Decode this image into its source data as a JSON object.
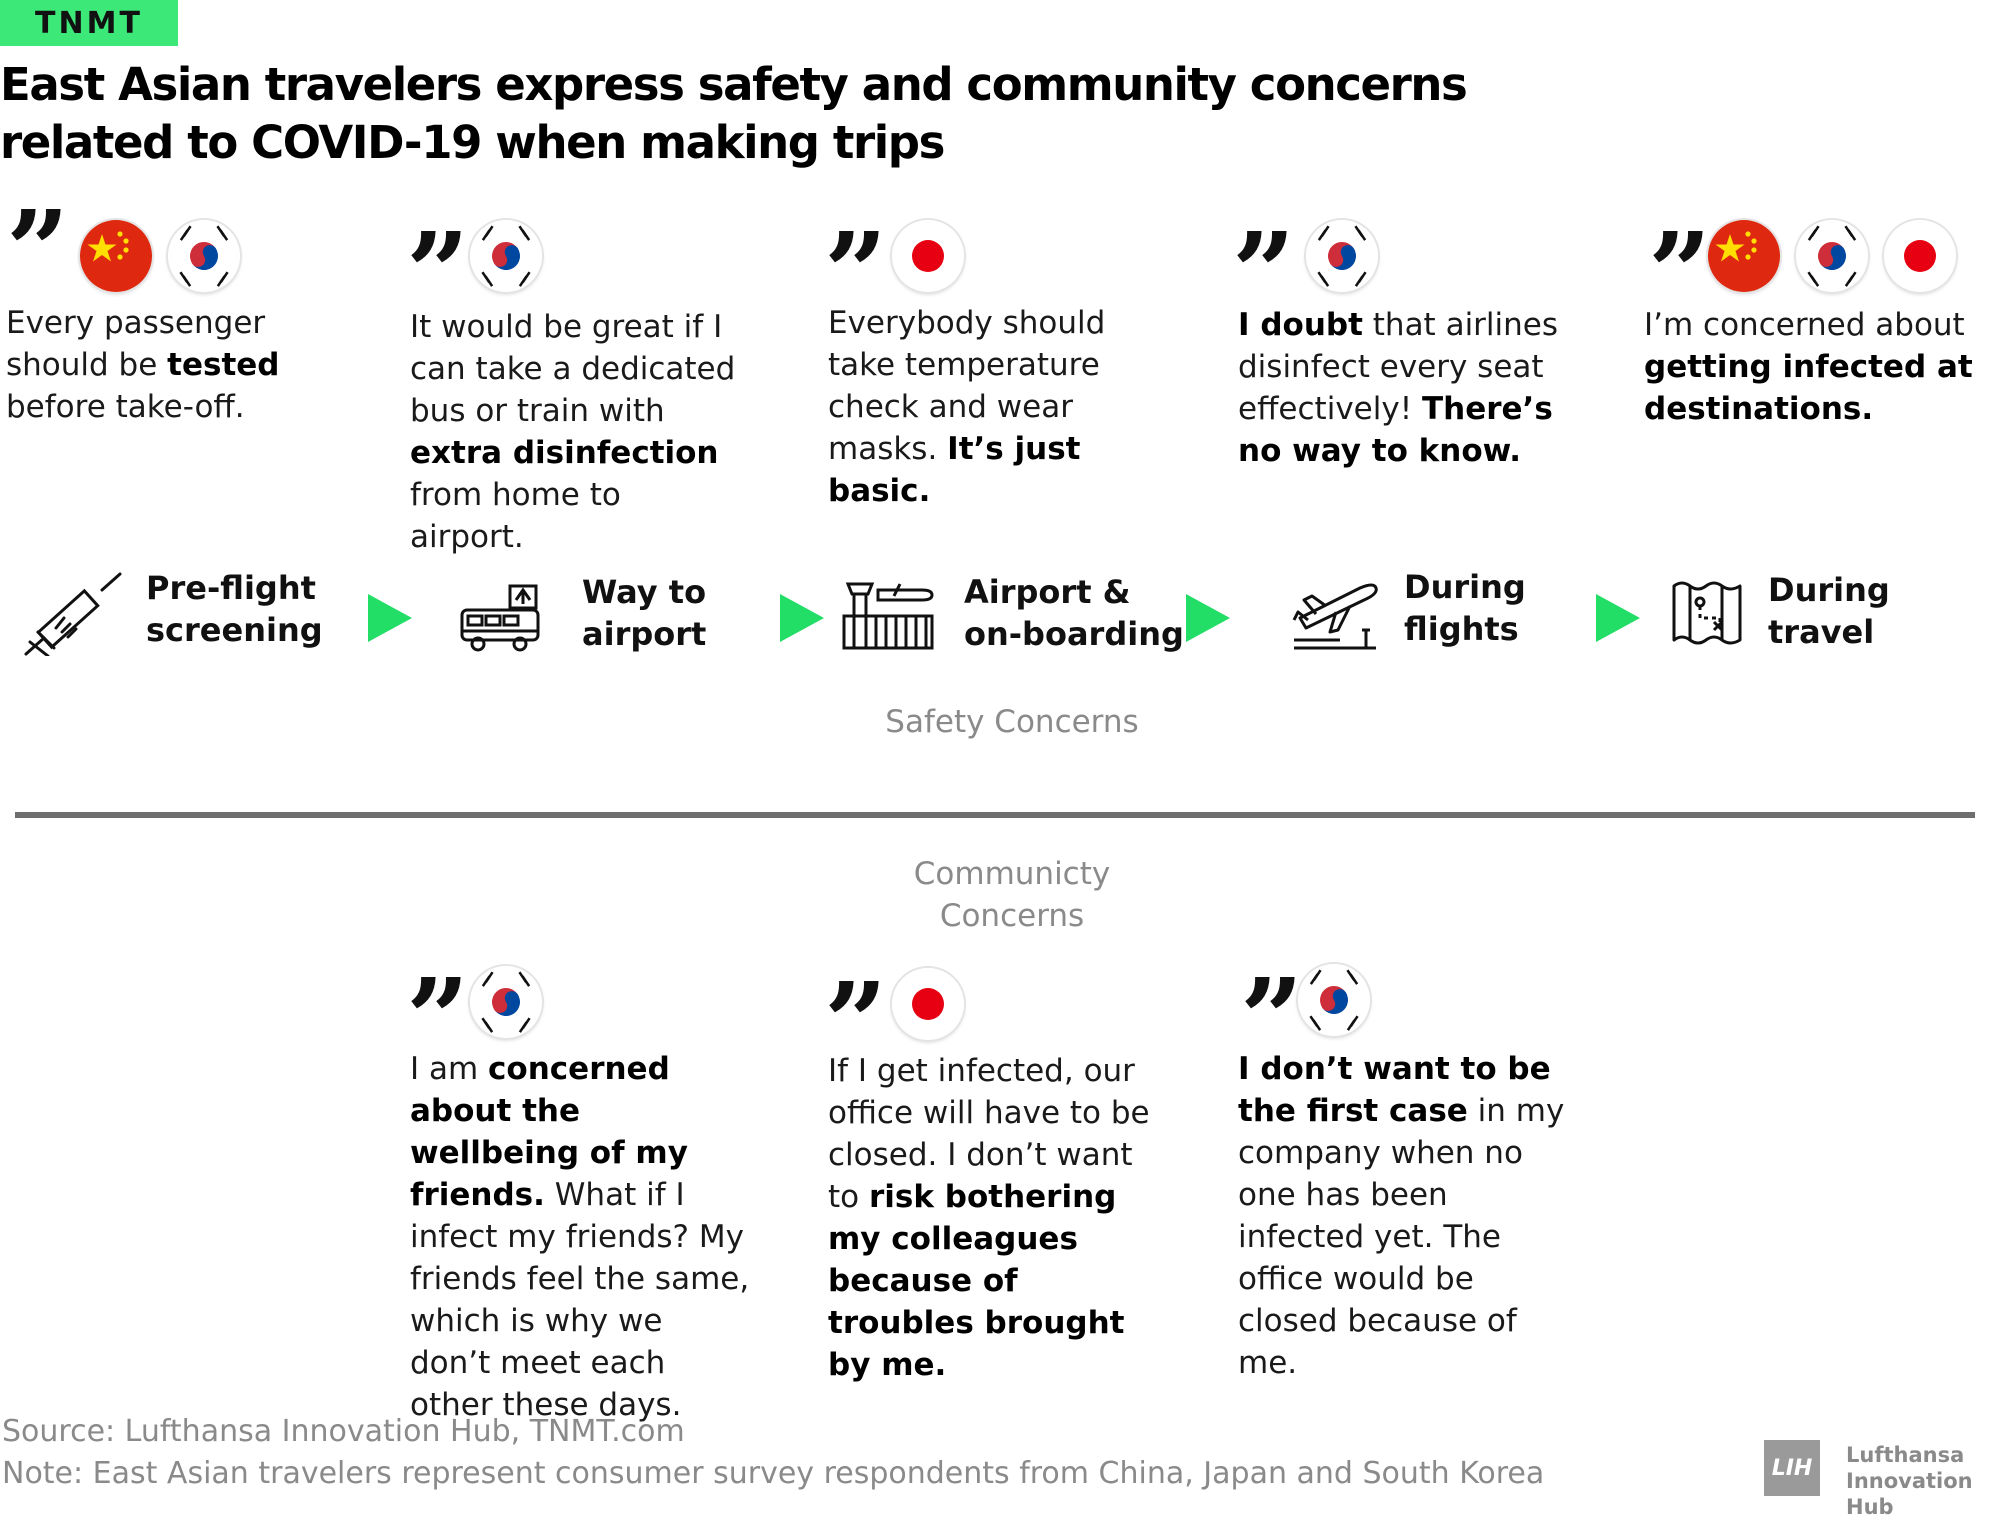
{
  "brand": "TNMT",
  "title": "East Asian travelers express safety and community concerns related to COVID-19 when making trips",
  "safety_quotes": [
    {
      "flags": [
        "china-flag",
        "south-korea-flag"
      ],
      "segments": [
        {
          "text": "Every passenger should be ",
          "bold": false
        },
        {
          "text": "tested",
          "bold": true
        },
        {
          "text": " before take-off.",
          "bold": false
        }
      ]
    },
    {
      "flags": [
        "south-korea-flag"
      ],
      "segments": [
        {
          "text": "It would be great if I can take a dedicated bus or train with ",
          "bold": false
        },
        {
          "text": "extra disinfection",
          "bold": true
        },
        {
          "text": " from home to airport.",
          "bold": false
        }
      ]
    },
    {
      "flags": [
        "japan-flag"
      ],
      "segments": [
        {
          "text": "Everybody should take temperature check and wear masks. ",
          "bold": false
        },
        {
          "text": "It’s just basic.",
          "bold": true
        }
      ]
    },
    {
      "flags": [
        "south-korea-flag"
      ],
      "segments": [
        {
          "text": "I doubt",
          "bold": true
        },
        {
          "text": " that airlines disinfect every seat effectively! ",
          "bold": false
        },
        {
          "text": "There’s no way to know.",
          "bold": true
        }
      ]
    },
    {
      "flags": [
        "china-flag",
        "south-korea-flag",
        "japan-flag"
      ],
      "segments": [
        {
          "text": "I’m concerned about ",
          "bold": false
        },
        {
          "text": "getting infected at destinations.",
          "bold": true
        }
      ]
    }
  ],
  "steps": [
    {
      "icon": "syringe-icon",
      "label": "Pre-flight screening"
    },
    {
      "icon": "airport-bus-icon",
      "label": "Way to airport"
    },
    {
      "icon": "airport-terminal-icon",
      "label": "Airport & on-boarding"
    },
    {
      "icon": "airplane-takeoff-icon",
      "label": "During flights"
    },
    {
      "icon": "map-icon",
      "label": "During travel"
    }
  ],
  "section_labels": {
    "safety": "Safety Concerns",
    "community": "Communicty Concerns"
  },
  "community_quotes": [
    {
      "flags": [
        "south-korea-flag"
      ],
      "segments": [
        {
          "text": "I am ",
          "bold": false
        },
        {
          "text": "concerned about the wellbeing of my friends.",
          "bold": true
        },
        {
          "text": " What if I infect my friends? My friends feel the same, which is why we don’t meet each other these days.",
          "bold": false
        }
      ]
    },
    {
      "flags": [
        "japan-flag"
      ],
      "segments": [
        {
          "text": "If I get infected, our office will have to be closed. I don’t want to ",
          "bold": false
        },
        {
          "text": "risk bothering my colleagues because of troubles brought by me.",
          "bold": true
        }
      ]
    },
    {
      "flags": [
        "south-korea-flag"
      ],
      "segments": [
        {
          "text": "I don’t want to be the first case",
          "bold": true
        },
        {
          "text": " in my company when no one has been infected yet. The office would be closed because of me.",
          "bold": false
        }
      ]
    }
  ],
  "footer": {
    "source": "Source: Lufthansa Innovation Hub, TNMT.com",
    "note": "Note: East Asian travelers represent consumer survey respondents from China, Japan and South Korea"
  },
  "logo": {
    "mark": "LIH",
    "text": "Lufthansa Innovation Hub"
  },
  "colors": {
    "accent_green": "#22dd66",
    "brand_green": "#3ce878",
    "divider": "#6e6e6e",
    "muted_text": "#8a8a8a"
  }
}
